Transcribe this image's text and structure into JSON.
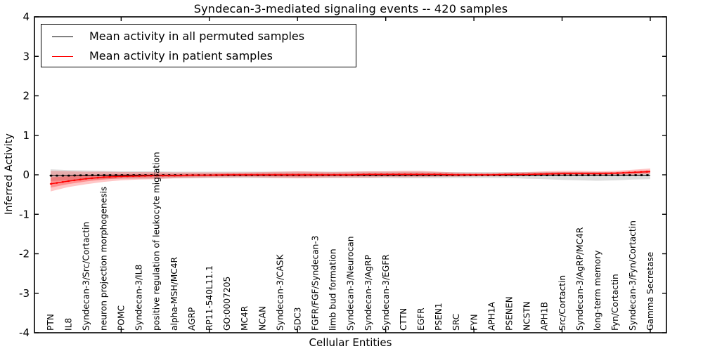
{
  "window": {
    "background": "#ffffff"
  },
  "chart_data": {
    "type": "line",
    "title": "Syndecan-3-mediated signaling events -- 420 samples",
    "xlabel": "Cellular Entities",
    "ylabel": "Inferred Activity",
    "ylim": [
      -4,
      4
    ],
    "yticks": [
      -4,
      -3,
      -2,
      -1,
      0,
      1,
      2,
      3,
      4
    ],
    "xtick_positions": [
      5,
      10,
      15,
      20,
      25,
      30,
      35
    ],
    "grid": false,
    "legend_position": "upper left",
    "categories": [
      "PTN",
      "IL8",
      "Syndecan-3/Src/Cortactin",
      "neuron projection morphogenesis",
      "POMC",
      "Syndecan-3/IL8",
      "positive regulation of leukocyte migration",
      "alpha-MSH/MC4R",
      "AGRP",
      "RP11-540L11.1",
      "GO:0007205",
      "MC4R",
      "NCAN",
      "Syndecan-3/CASK",
      "SDC3",
      "FGFR/FGF/Syndecan-3",
      "limb bud formation",
      "Syndecan-3/Neurocan",
      "Syndecan-3/AgRP",
      "Syndecan-3/EGFR",
      "CTTN",
      "EGFR",
      "PSEN1",
      "SRC",
      "FYN",
      "APH1A",
      "PSENEN",
      "NCSTN",
      "APH1B",
      "Src/Cortactin",
      "Syndecan-3/AgRP/MC4R",
      "long-term memory",
      "Fyn/Cortactin",
      "Syndecan-3/Fyn/Cortactin",
      "Gamma Secretase"
    ],
    "series": [
      {
        "name": "Mean activity in all permuted samples",
        "color": "#000000",
        "values": [
          -0.02,
          -0.02,
          -0.01,
          -0.01,
          -0.01,
          -0.01,
          -0.01,
          -0.01,
          -0.01,
          -0.01,
          -0.01,
          -0.01,
          -0.01,
          -0.01,
          -0.01,
          -0.01,
          -0.01,
          -0.01,
          -0.01,
          -0.01,
          -0.01,
          -0.01,
          -0.01,
          -0.01,
          -0.01,
          -0.01,
          -0.01,
          -0.01,
          -0.01,
          -0.01,
          -0.01,
          -0.01,
          -0.01,
          -0.01,
          -0.01
        ]
      },
      {
        "name": "Mean activity in patient samples",
        "color": "#ff0000",
        "values": [
          -0.23,
          -0.16,
          -0.1,
          -0.06,
          -0.04,
          -0.03,
          -0.02,
          -0.02,
          -0.01,
          -0.01,
          0,
          0,
          0,
          0,
          0,
          0,
          0,
          0,
          0.01,
          0.01,
          0.01,
          0.01,
          0.01,
          0,
          0,
          0,
          0.01,
          0.01,
          0.02,
          0.03,
          0.03,
          0.03,
          0.04,
          0.06,
          0.08
        ]
      }
    ],
    "bands": [
      {
        "name": "permuted-activity-range",
        "color": "#888888",
        "opacity": 0.28,
        "lower": [
          -0.16,
          -0.14,
          -0.12,
          -0.11,
          -0.1,
          -0.1,
          -0.1,
          -0.09,
          -0.09,
          -0.08,
          -0.08,
          -0.08,
          -0.08,
          -0.08,
          -0.08,
          -0.08,
          -0.08,
          -0.08,
          -0.08,
          -0.08,
          -0.09,
          -0.09,
          -0.09,
          -0.08,
          -0.08,
          -0.08,
          -0.08,
          -0.1,
          -0.11,
          -0.13,
          -0.14,
          -0.15,
          -0.14,
          -0.12,
          -0.11
        ],
        "upper": [
          0.14,
          0.12,
          0.11,
          0.1,
          0.09,
          0.09,
          0.09,
          0.08,
          0.08,
          0.08,
          0.08,
          0.08,
          0.08,
          0.08,
          0.08,
          0.08,
          0.08,
          0.08,
          0.08,
          0.08,
          0.08,
          0.08,
          0.07,
          0.07,
          0.07,
          0.07,
          0.07,
          0.07,
          0.07,
          0.07,
          0.07,
          0.07,
          0.06,
          0.06,
          0.06
        ]
      },
      {
        "name": "patient-activity-range",
        "color": "#ff0000",
        "opacity": 0.25,
        "lower": [
          -0.42,
          -0.31,
          -0.24,
          -0.18,
          -0.14,
          -0.12,
          -0.11,
          -0.09,
          -0.08,
          -0.07,
          -0.07,
          -0.06,
          -0.07,
          -0.08,
          -0.09,
          -0.08,
          -0.07,
          -0.07,
          -0.07,
          -0.06,
          -0.06,
          -0.06,
          -0.05,
          -0.05,
          -0.04,
          -0.04,
          -0.04,
          -0.03,
          -0.02,
          -0.02,
          -0.01,
          -0.02,
          -0.01,
          0.0,
          0.02
        ],
        "upper": [
          0.1,
          0.09,
          0.08,
          0.08,
          0.07,
          0.07,
          0.07,
          0.06,
          0.06,
          0.06,
          0.06,
          0.06,
          0.07,
          0.08,
          0.09,
          0.08,
          0.07,
          0.08,
          0.09,
          0.09,
          0.1,
          0.1,
          0.08,
          0.06,
          0.05,
          0.05,
          0.06,
          0.07,
          0.09,
          0.1,
          0.1,
          0.09,
          0.1,
          0.13,
          0.16
        ]
      }
    ]
  },
  "legend": {
    "entries": [
      {
        "label": "Mean activity in all permuted samples",
        "color": "#000000"
      },
      {
        "label": "Mean activity in patient samples",
        "color": "#ff0000"
      }
    ]
  }
}
